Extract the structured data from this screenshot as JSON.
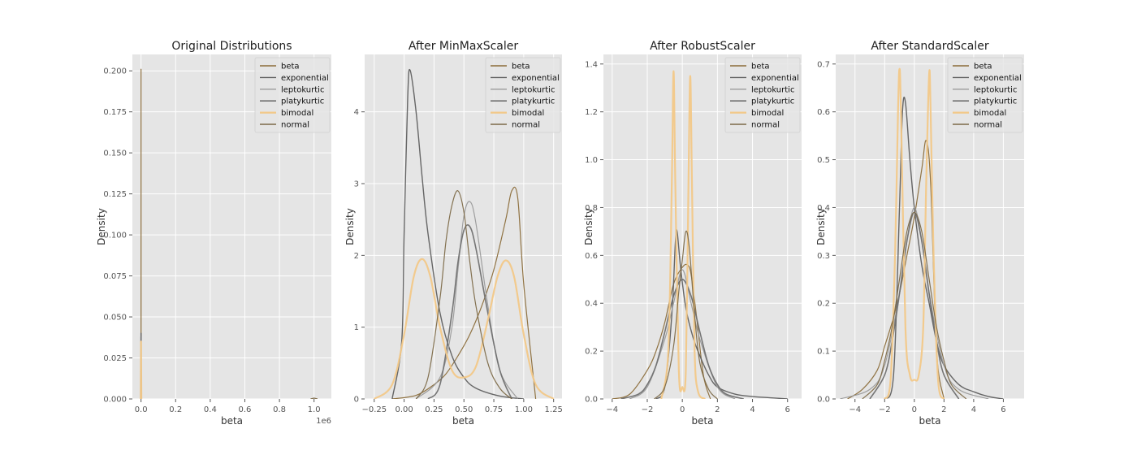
{
  "figure": {
    "style": "ggplot",
    "background": "#ffffff",
    "panel_background": "#e5e5e5",
    "grid_color": "#ffffff",
    "legend_placement": "top-right"
  },
  "series_styles": [
    {
      "name": "beta",
      "color": "#8b6d3a",
      "width": 1.2
    },
    {
      "name": "exponential",
      "color": "#5f5f5f",
      "width": 1.4
    },
    {
      "name": "leptokurtic",
      "color": "#9a9a9a",
      "width": 1.2
    },
    {
      "name": "platykurtic",
      "color": "#707070",
      "width": 1.6
    },
    {
      "name": "bimodal",
      "color": "#f2c888",
      "width": 2.2
    },
    {
      "name": "normal",
      "color": "#7d6a48",
      "width": 1.2
    }
  ],
  "chart_data": [
    {
      "type": "line",
      "title": "Original Distributions",
      "xlabel": "beta",
      "ylabel": "Density",
      "xlim": [
        -50000,
        1100000
      ],
      "ylim": [
        0,
        0.21
      ],
      "xticks": [
        0,
        200000,
        400000,
        600000,
        800000,
        1000000
      ],
      "xtick_labels": [
        "0.0",
        "0.2",
        "0.4",
        "0.6",
        "0.8",
        "1.0"
      ],
      "x_offset_label": "1e6",
      "yticks": [
        0,
        0.025,
        0.05,
        0.075,
        0.1,
        0.125,
        0.15,
        0.175,
        0.2
      ],
      "ytick_labels": [
        "0.000",
        "0.025",
        "0.050",
        "0.075",
        "0.100",
        "0.125",
        "0.150",
        "0.175",
        "0.200"
      ],
      "legend": [
        "beta",
        "exponential",
        "leptokurtic",
        "platykurtic",
        "bimodal",
        "normal"
      ],
      "series": [
        {
          "name": "beta",
          "x": [
            -300,
            0,
            300
          ],
          "y": [
            0,
            0.201,
            0
          ]
        },
        {
          "name": "exponential",
          "x": [
            -800,
            0,
            800
          ],
          "y": [
            0,
            0.04,
            0
          ]
        },
        {
          "name": "leptokurtic",
          "x": [
            -800,
            0,
            800
          ],
          "y": [
            0,
            0.03,
            0
          ]
        },
        {
          "name": "platykurtic",
          "x": [
            -800,
            0,
            800
          ],
          "y": [
            0,
            0.038,
            0
          ]
        },
        {
          "name": "bimodal",
          "x": [
            -2000,
            0,
            2000
          ],
          "y": [
            0,
            0.035,
            0
          ]
        },
        {
          "name": "normal",
          "x": [
            980000,
            1000000,
            1020000
          ],
          "y": [
            0,
            0.0005,
            0
          ]
        }
      ]
    },
    {
      "type": "line",
      "title": "After MinMaxScaler",
      "xlabel": "beta",
      "ylabel": "Density",
      "xlim": [
        -0.33,
        1.32
      ],
      "ylim": [
        0,
        4.8
      ],
      "xticks": [
        -0.25,
        0,
        0.25,
        0.5,
        0.75,
        1.0,
        1.25
      ],
      "xtick_labels": [
        "−0.25",
        "0.00",
        "0.25",
        "0.50",
        "0.75",
        "1.00",
        "1.25"
      ],
      "yticks": [
        0,
        1,
        2,
        3,
        4
      ],
      "ytick_labels": [
        "0",
        "1",
        "2",
        "3",
        "4"
      ],
      "legend": [
        "beta",
        "exponential",
        "leptokurtic",
        "platykurtic",
        "bimodal",
        "normal"
      ],
      "series": [
        {
          "name": "beta",
          "x": [
            -0.1,
            0.1,
            0.25,
            0.35,
            0.45,
            0.55,
            0.65,
            0.75,
            0.85,
            0.9,
            0.95,
            1.0,
            1.1
          ],
          "y": [
            0,
            0.05,
            0.2,
            0.35,
            0.6,
            0.9,
            1.3,
            1.8,
            2.5,
            2.9,
            2.8,
            1.6,
            0
          ]
        },
        {
          "name": "exponential",
          "x": [
            -0.1,
            -0.02,
            0.0,
            0.03,
            0.05,
            0.1,
            0.15,
            0.2,
            0.3,
            0.4,
            0.5,
            0.6,
            0.8,
            1.0
          ],
          "y": [
            0,
            0.8,
            2.3,
            4.2,
            4.58,
            4.0,
            3.1,
            2.3,
            1.2,
            0.6,
            0.3,
            0.15,
            0.04,
            0
          ]
        },
        {
          "name": "leptokurtic",
          "x": [
            0.1,
            0.3,
            0.4,
            0.45,
            0.5,
            0.55,
            0.6,
            0.7,
            0.8,
            0.95
          ],
          "y": [
            0,
            0.3,
            1.0,
            1.8,
            2.55,
            2.75,
            2.45,
            1.3,
            0.4,
            0
          ]
        },
        {
          "name": "platykurtic",
          "x": [
            0.2,
            0.3,
            0.4,
            0.45,
            0.5,
            0.55,
            0.6,
            0.7,
            0.8,
            0.9
          ],
          "y": [
            0,
            0.2,
            1.2,
            1.9,
            2.35,
            2.4,
            2.1,
            1.2,
            0.4,
            0
          ]
        },
        {
          "name": "bimodal",
          "x": [
            -0.25,
            -0.1,
            0.0,
            0.08,
            0.15,
            0.22,
            0.3,
            0.4,
            0.5,
            0.6,
            0.7,
            0.78,
            0.85,
            0.92,
            1.0,
            1.1,
            1.25
          ],
          "y": [
            0,
            0.2,
            0.9,
            1.7,
            1.95,
            1.7,
            1.0,
            0.4,
            0.3,
            0.45,
            1.1,
            1.7,
            1.93,
            1.7,
            0.9,
            0.2,
            0
          ]
        },
        {
          "name": "normal",
          "x": [
            0.1,
            0.2,
            0.3,
            0.35,
            0.4,
            0.45,
            0.5,
            0.55,
            0.6,
            0.7,
            0.8,
            0.9
          ],
          "y": [
            0,
            0.3,
            1.4,
            2.2,
            2.7,
            2.9,
            2.6,
            1.9,
            1.3,
            0.5,
            0.15,
            0
          ]
        }
      ]
    },
    {
      "type": "line",
      "title": "After RobustScaler",
      "xlabel": "beta",
      "ylabel": "Density",
      "xlim": [
        -4.5,
        6.8
      ],
      "ylim": [
        0,
        1.44
      ],
      "xticks": [
        -4,
        -2,
        0,
        2,
        4,
        6
      ],
      "xtick_labels": [
        "−4",
        "−2",
        "0",
        "2",
        "4",
        "6"
      ],
      "yticks": [
        0,
        0.2,
        0.4,
        0.6,
        0.8,
        1.0,
        1.2,
        1.4
      ],
      "ytick_labels": [
        "0.0",
        "0.2",
        "0.4",
        "0.6",
        "0.8",
        "1.0",
        "1.2",
        "1.4"
      ],
      "legend": [
        "beta",
        "exponential",
        "leptokurtic",
        "platykurtic",
        "bimodal",
        "normal"
      ],
      "series": [
        {
          "name": "beta",
          "x": [
            -4,
            -3,
            -2,
            -1.5,
            -1,
            -0.5,
            0,
            0.3,
            0.5,
            0.8,
            1.2,
            1.6
          ],
          "y": [
            0,
            0.02,
            0.12,
            0.2,
            0.32,
            0.48,
            0.55,
            0.56,
            0.52,
            0.35,
            0.1,
            0
          ]
        },
        {
          "name": "exponential",
          "x": [
            -1.5,
            -1,
            -0.6,
            -0.4,
            -0.3,
            -0.1,
            0.2,
            0.6,
            1,
            1.5,
            2,
            3,
            4,
            5,
            6
          ],
          "y": [
            0,
            0.05,
            0.35,
            0.65,
            0.7,
            0.55,
            0.38,
            0.26,
            0.18,
            0.1,
            0.05,
            0.02,
            0.01,
            0.005,
            0
          ]
        },
        {
          "name": "leptokurtic",
          "x": [
            -3,
            -2,
            -1,
            -0.5,
            0,
            0.5,
            1,
            2,
            3
          ],
          "y": [
            0,
            0.05,
            0.25,
            0.4,
            0.54,
            0.4,
            0.25,
            0.05,
            0
          ]
        },
        {
          "name": "platykurtic",
          "x": [
            -3.5,
            -2.5,
            -2,
            -1.5,
            -1,
            -0.5,
            0,
            0.5,
            1,
            1.5,
            2,
            2.5,
            3.5
          ],
          "y": [
            0,
            0.02,
            0.06,
            0.14,
            0.28,
            0.43,
            0.5,
            0.43,
            0.28,
            0.14,
            0.06,
            0.02,
            0
          ]
        },
        {
          "name": "bimodal",
          "x": [
            -1.2,
            -0.8,
            -0.6,
            -0.5,
            -0.4,
            -0.2,
            0,
            0.2,
            0.35,
            0.45,
            0.55,
            0.7,
            0.9,
            1.3
          ],
          "y": [
            0,
            0.2,
            0.9,
            1.37,
            0.9,
            0.12,
            0.05,
            0.12,
            0.9,
            1.35,
            0.9,
            0.2,
            0.03,
            0
          ]
        },
        {
          "name": "normal",
          "x": [
            -1.6,
            -1,
            -0.5,
            -0.2,
            0,
            0.2,
            0.4,
            0.7,
            1,
            1.5,
            2
          ],
          "y": [
            0,
            0.05,
            0.22,
            0.45,
            0.58,
            0.7,
            0.63,
            0.35,
            0.15,
            0.04,
            0
          ]
        }
      ]
    },
    {
      "type": "line",
      "title": "After StandardScaler",
      "xlabel": "beta",
      "ylabel": "Density",
      "xlim": [
        -5.3,
        7.4
      ],
      "ylim": [
        0,
        0.72
      ],
      "xticks": [
        -4,
        -2,
        0,
        2,
        4,
        6
      ],
      "xtick_labels": [
        "−4",
        "−2",
        "0",
        "2",
        "4",
        "6"
      ],
      "yticks": [
        0,
        0.1,
        0.2,
        0.3,
        0.4,
        0.5,
        0.6,
        0.7
      ],
      "ytick_labels": [
        "0.0",
        "0.1",
        "0.2",
        "0.3",
        "0.4",
        "0.5",
        "0.6",
        "0.7"
      ],
      "legend": [
        "beta",
        "exponential",
        "leptokurtic",
        "platykurtic",
        "bimodal",
        "normal"
      ],
      "series": [
        {
          "name": "beta",
          "x": [
            -4.5,
            -3.5,
            -2.5,
            -2,
            -1.5,
            -1,
            -0.5,
            0,
            0.5,
            0.8,
            1.1,
            1.5,
            2
          ],
          "y": [
            0,
            0.02,
            0.06,
            0.11,
            0.16,
            0.22,
            0.3,
            0.38,
            0.48,
            0.54,
            0.45,
            0.1,
            0
          ]
        },
        {
          "name": "exponential",
          "x": [
            -2,
            -1.4,
            -1,
            -0.8,
            -0.6,
            -0.3,
            0,
            0.5,
            1,
            1.5,
            2,
            3,
            4,
            5,
            6
          ],
          "y": [
            0,
            0.05,
            0.4,
            0.6,
            0.62,
            0.5,
            0.4,
            0.28,
            0.2,
            0.12,
            0.07,
            0.03,
            0.015,
            0.005,
            0
          ]
        },
        {
          "name": "leptokurtic",
          "x": [
            -5,
            -3,
            -2,
            -1,
            -0.5,
            0,
            0.5,
            1,
            2,
            3,
            5
          ],
          "y": [
            0,
            0.02,
            0.07,
            0.22,
            0.33,
            0.4,
            0.33,
            0.22,
            0.07,
            0.02,
            0
          ]
        },
        {
          "name": "platykurtic",
          "x": [
            -3,
            -2,
            -1.5,
            -1,
            -0.5,
            0,
            0.5,
            1,
            1.5,
            2,
            3
          ],
          "y": [
            0,
            0.05,
            0.12,
            0.22,
            0.33,
            0.39,
            0.33,
            0.22,
            0.12,
            0.05,
            0
          ]
        },
        {
          "name": "bimodal",
          "x": [
            -2,
            -1.6,
            -1.3,
            -1.1,
            -1,
            -0.9,
            -0.6,
            -0.3,
            0,
            0.3,
            0.6,
            0.8,
            1,
            1.1,
            1.3,
            1.6,
            2
          ],
          "y": [
            0,
            0.04,
            0.3,
            0.6,
            0.69,
            0.6,
            0.15,
            0.05,
            0.04,
            0.05,
            0.15,
            0.45,
            0.68,
            0.6,
            0.3,
            0.04,
            0
          ]
        },
        {
          "name": "normal",
          "x": [
            -3.5,
            -2.5,
            -2,
            -1.5,
            -1,
            -0.5,
            0,
            0.5,
            1,
            1.5,
            2,
            2.5,
            3.5
          ],
          "y": [
            0,
            0.03,
            0.08,
            0.15,
            0.25,
            0.35,
            0.39,
            0.35,
            0.25,
            0.15,
            0.08,
            0.03,
            0
          ]
        }
      ]
    }
  ]
}
